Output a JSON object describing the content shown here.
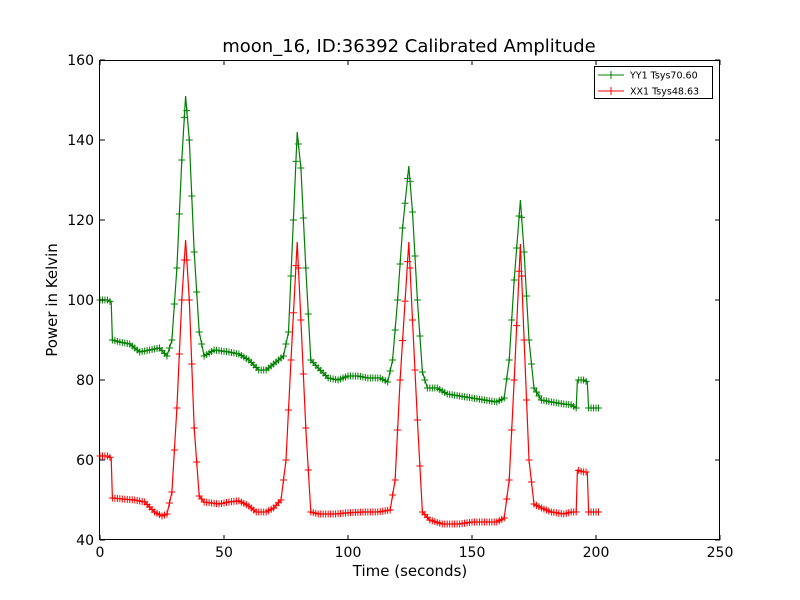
{
  "chart_data": {
    "type": "line",
    "title": "moon_16, ID:36392 Calibrated Amplitude",
    "xlabel": "Time (seconds)",
    "ylabel": "Power in Kelvin",
    "xlim": [
      0,
      250
    ],
    "ylim": [
      40,
      160
    ],
    "xticks": [
      0,
      50,
      100,
      150,
      200,
      250
    ],
    "yticks": [
      40,
      60,
      80,
      100,
      120,
      140,
      160
    ],
    "grid": false,
    "legend_position": "top-right",
    "marker": "+",
    "series": [
      {
        "name": "YY1 Tsys70.60",
        "color": "#008000",
        "points": [
          [
            0,
            100
          ],
          [
            3,
            100
          ],
          [
            4.5,
            99.5
          ],
          [
            5,
            90
          ],
          [
            8,
            89.5
          ],
          [
            12,
            89
          ],
          [
            16,
            87
          ],
          [
            20,
            87.5
          ],
          [
            24,
            88
          ],
          [
            27,
            86
          ],
          [
            29,
            90
          ],
          [
            31,
            108
          ],
          [
            33,
            135
          ],
          [
            34.5,
            151
          ],
          [
            36,
            140
          ],
          [
            38,
            112
          ],
          [
            40,
            92
          ],
          [
            42,
            86
          ],
          [
            46,
            87.5
          ],
          [
            52,
            87
          ],
          [
            56,
            86.5
          ],
          [
            60,
            85
          ],
          [
            64,
            82.5
          ],
          [
            67,
            82.5
          ],
          [
            70,
            84
          ],
          [
            74,
            86
          ],
          [
            76,
            92
          ],
          [
            78,
            120
          ],
          [
            79.5,
            142
          ],
          [
            81,
            133
          ],
          [
            83,
            108
          ],
          [
            85,
            85
          ],
          [
            88,
            83
          ],
          [
            92,
            80.5
          ],
          [
            96,
            80
          ],
          [
            100,
            81
          ],
          [
            104,
            81
          ],
          [
            108,
            80.5
          ],
          [
            113,
            80.5
          ],
          [
            116,
            79.5
          ],
          [
            118,
            85
          ],
          [
            120,
            100
          ],
          [
            122,
            118
          ],
          [
            124.5,
            133.5
          ],
          [
            126,
            122
          ],
          [
            128,
            100
          ],
          [
            130,
            82
          ],
          [
            132,
            78
          ],
          [
            136,
            78
          ],
          [
            140,
            76.5
          ],
          [
            145,
            76
          ],
          [
            150,
            75.5
          ],
          [
            155,
            75
          ],
          [
            160,
            74.5
          ],
          [
            163,
            75.5
          ],
          [
            165,
            85
          ],
          [
            167,
            105
          ],
          [
            169.5,
            125
          ],
          [
            171,
            112
          ],
          [
            173,
            90
          ],
          [
            175,
            78
          ],
          [
            178,
            75
          ],
          [
            182,
            74.5
          ],
          [
            187,
            74
          ],
          [
            190,
            73.8
          ],
          [
            192,
            73
          ],
          [
            192.5,
            80
          ],
          [
            195,
            80
          ],
          [
            196.5,
            79.5
          ],
          [
            197,
            73
          ],
          [
            201,
            73
          ]
        ]
      },
      {
        "name": "XX1 Tsys48.63",
        "color": "#ff0000",
        "points": [
          [
            0,
            61
          ],
          [
            3,
            61
          ],
          [
            4.5,
            60.5
          ],
          [
            5,
            50.5
          ],
          [
            10,
            50.2
          ],
          [
            14,
            50
          ],
          [
            18,
            49.5
          ],
          [
            22,
            47
          ],
          [
            25,
            46
          ],
          [
            27,
            46.5
          ],
          [
            29,
            52
          ],
          [
            31,
            73
          ],
          [
            33,
            100
          ],
          [
            34.5,
            115
          ],
          [
            36,
            100
          ],
          [
            38,
            68
          ],
          [
            40,
            51
          ],
          [
            42,
            49.5
          ],
          [
            48,
            49
          ],
          [
            52,
            49.5
          ],
          [
            56,
            49.8
          ],
          [
            60,
            48.5
          ],
          [
            63,
            47
          ],
          [
            67,
            47
          ],
          [
            70,
            48
          ],
          [
            73,
            50
          ],
          [
            75,
            60
          ],
          [
            77,
            85
          ],
          [
            79.5,
            114.5
          ],
          [
            81,
            95
          ],
          [
            83,
            68
          ],
          [
            85,
            47
          ],
          [
            88,
            46.5
          ],
          [
            95,
            46.5
          ],
          [
            100,
            46.8
          ],
          [
            106,
            47
          ],
          [
            112,
            47
          ],
          [
            117,
            47.5
          ],
          [
            119,
            55
          ],
          [
            121,
            80
          ],
          [
            124.5,
            114.5
          ],
          [
            126,
            95
          ],
          [
            128,
            70
          ],
          [
            130,
            47
          ],
          [
            133,
            45
          ],
          [
            138,
            44
          ],
          [
            145,
            44
          ],
          [
            150,
            44.5
          ],
          [
            155,
            44.5
          ],
          [
            160,
            44.5
          ],
          [
            163,
            45.5
          ],
          [
            165,
            55
          ],
          [
            167,
            80
          ],
          [
            169.5,
            114
          ],
          [
            171,
            90
          ],
          [
            173,
            60
          ],
          [
            175,
            49
          ],
          [
            178,
            48
          ],
          [
            182,
            47
          ],
          [
            187,
            46.5
          ],
          [
            190,
            47
          ],
          [
            192,
            47
          ],
          [
            192.5,
            57.5
          ],
          [
            195,
            57
          ],
          [
            196.5,
            57
          ],
          [
            197,
            47
          ],
          [
            201,
            47
          ]
        ]
      }
    ]
  }
}
